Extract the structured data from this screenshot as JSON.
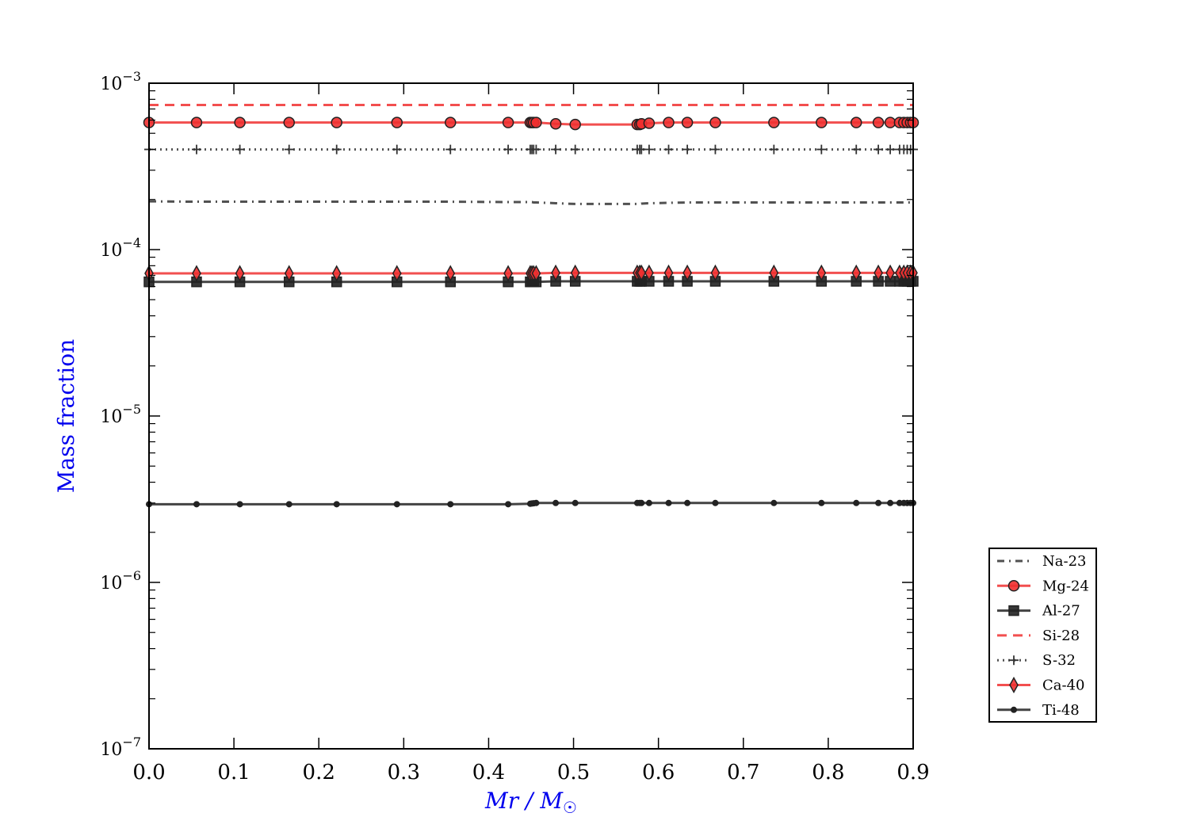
{
  "chart_data": {
    "type": "line",
    "title": "",
    "xlabel": "Mr / M",
    "xlabel_sub": "☉",
    "ylabel": "Mass fraction",
    "xlim": [
      0.0,
      0.9
    ],
    "ylim": [
      1e-07,
      0.001
    ],
    "yscale": "log",
    "grid": false,
    "legend_position": "lower-right, outside plot",
    "x_ticks": [
      "0.0",
      "0.1",
      "0.2",
      "0.3",
      "0.4",
      "0.5",
      "0.6",
      "0.7",
      "0.8",
      "0.9"
    ],
    "y_ticks": [
      {
        "base": "10",
        "exp": "−7",
        "value": 1e-07
      },
      {
        "base": "10",
        "exp": "−6",
        "value": 1e-06
      },
      {
        "base": "10",
        "exp": "−5",
        "value": 1e-05
      },
      {
        "base": "10",
        "exp": "−4",
        "value": 0.0001
      },
      {
        "base": "10",
        "exp": "−3",
        "value": 0.001
      }
    ],
    "x": [
      0.0,
      0.056,
      0.107,
      0.165,
      0.221,
      0.292,
      0.355,
      0.423,
      0.449,
      0.451,
      0.453,
      0.456,
      0.479,
      0.502,
      0.575,
      0.578,
      0.58,
      0.589,
      0.612,
      0.634,
      0.667,
      0.736,
      0.792,
      0.833,
      0.859,
      0.873,
      0.884,
      0.889,
      0.893,
      0.897,
      0.9
    ],
    "series": [
      {
        "name": "Na-23",
        "color": "#333333",
        "style": "dashdot",
        "marker": "none",
        "values": [
          0.000195,
          0.000194,
          0.000194,
          0.000194,
          0.000194,
          0.000194,
          0.000194,
          0.000193,
          0.000193,
          0.000193,
          0.000192,
          0.000192,
          0.00019,
          0.000188,
          0.000188,
          0.000188,
          0.000189,
          0.00019,
          0.000191,
          0.000192,
          0.000192,
          0.000192,
          0.000192,
          0.000192,
          0.000192,
          0.000192,
          0.000192,
          0.000192,
          0.000192,
          0.000192,
          0.000192
        ]
      },
      {
        "name": "Mg-24",
        "color": "#f03030",
        "style": "solid",
        "marker": "circle",
        "values": [
          0.00058,
          0.00058,
          0.00058,
          0.00058,
          0.00058,
          0.00058,
          0.00058,
          0.00058,
          0.00058,
          0.00058,
          0.00058,
          0.00058,
          0.00057,
          0.000565,
          0.000565,
          0.000565,
          0.00057,
          0.000575,
          0.00058,
          0.00058,
          0.00058,
          0.00058,
          0.00058,
          0.00058,
          0.00058,
          0.00058,
          0.00058,
          0.00058,
          0.00058,
          0.00058,
          0.00058
        ]
      },
      {
        "name": "Al-27",
        "color": "#222222",
        "style": "solid",
        "marker": "square",
        "values": [
          6.4e-05,
          6.4e-05,
          6.4e-05,
          6.4e-05,
          6.4e-05,
          6.4e-05,
          6.4e-05,
          6.4e-05,
          6.4e-05,
          6.4e-05,
          6.4e-05,
          6.4e-05,
          6.45e-05,
          6.45e-05,
          6.45e-05,
          6.45e-05,
          6.45e-05,
          6.45e-05,
          6.45e-05,
          6.45e-05,
          6.45e-05,
          6.45e-05,
          6.45e-05,
          6.45e-05,
          6.45e-05,
          6.45e-05,
          6.45e-05,
          6.45e-05,
          6.45e-05,
          6.45e-05,
          6.45e-05
        ]
      },
      {
        "name": "Si-28",
        "color": "#f03030",
        "style": "dashed",
        "marker": "none",
        "values": [
          0.00074,
          0.00074,
          0.00074,
          0.00074,
          0.00074,
          0.00074,
          0.00074,
          0.00074,
          0.00074,
          0.00074,
          0.00074,
          0.00074,
          0.00074,
          0.00074,
          0.00074,
          0.00074,
          0.00074,
          0.00074,
          0.00074,
          0.00074,
          0.00074,
          0.00074,
          0.00074,
          0.00074,
          0.00074,
          0.00074,
          0.00074,
          0.00074,
          0.00074,
          0.00074,
          0.00074
        ]
      },
      {
        "name": "S-32",
        "color": "#333333",
        "style": "dotted",
        "marker": "plus",
        "values": [
          0.0004,
          0.0004,
          0.0004,
          0.0004,
          0.0004,
          0.0004,
          0.0004,
          0.0004,
          0.0004,
          0.0004,
          0.0004,
          0.0004,
          0.0004,
          0.0004,
          0.0004,
          0.0004,
          0.0004,
          0.0004,
          0.0004,
          0.0004,
          0.0004,
          0.0004,
          0.0004,
          0.0004,
          0.0004,
          0.0004,
          0.0004,
          0.0004,
          0.0004,
          0.0004,
          0.0004
        ]
      },
      {
        "name": "Ca-40",
        "color": "#f03030",
        "style": "solid",
        "marker": "diamond",
        "values": [
          7.2e-05,
          7.2e-05,
          7.2e-05,
          7.2e-05,
          7.2e-05,
          7.2e-05,
          7.2e-05,
          7.2e-05,
          7.2e-05,
          7.2e-05,
          7.2e-05,
          7.2e-05,
          7.25e-05,
          7.25e-05,
          7.25e-05,
          7.25e-05,
          7.25e-05,
          7.25e-05,
          7.25e-05,
          7.25e-05,
          7.25e-05,
          7.25e-05,
          7.25e-05,
          7.25e-05,
          7.25e-05,
          7.25e-05,
          7.25e-05,
          7.25e-05,
          7.25e-05,
          7.25e-05,
          7.25e-05
        ]
      },
      {
        "name": "Ti-48",
        "color": "#222222",
        "style": "solid",
        "marker": "dot",
        "values": [
          2.95e-06,
          2.95e-06,
          2.95e-06,
          2.95e-06,
          2.95e-06,
          2.95e-06,
          2.95e-06,
          2.95e-06,
          2.97e-06,
          2.98e-06,
          2.99e-06,
          3e-06,
          3e-06,
          3e-06,
          3e-06,
          3e-06,
          3e-06,
          3e-06,
          3e-06,
          3e-06,
          3e-06,
          3e-06,
          3e-06,
          3e-06,
          3e-06,
          3e-06,
          3e-06,
          3e-06,
          3e-06,
          3e-06,
          3e-06
        ]
      }
    ]
  }
}
